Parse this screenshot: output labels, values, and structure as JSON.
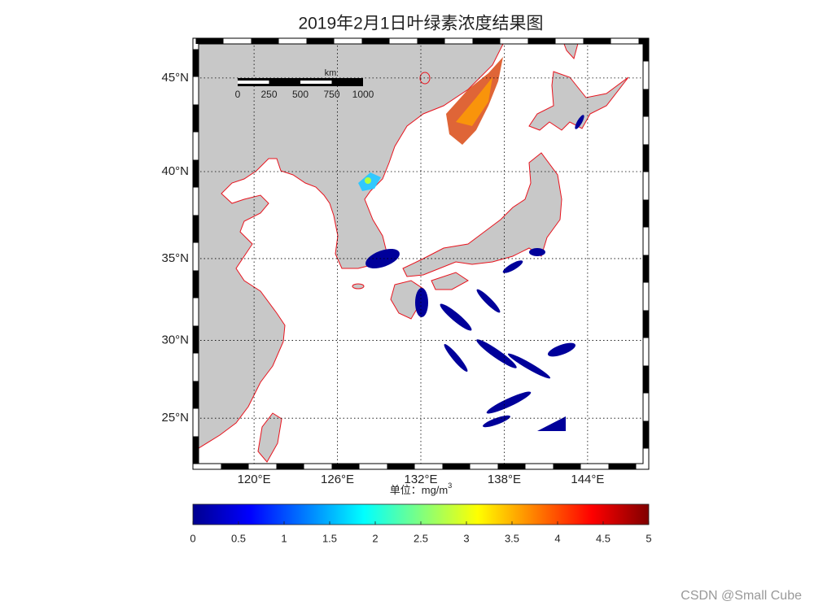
{
  "title": "2019年2月1日叶绿素浓度结果图",
  "map": {
    "lonlim": [
      115.6,
      148.4
    ],
    "latlim": [
      21.6,
      47
    ],
    "lon_ticks": [
      {
        "value": 120,
        "label": "120°E"
      },
      {
        "value": 126,
        "label": "126°E"
      },
      {
        "value": 132,
        "label": "132°E"
      },
      {
        "value": 138,
        "label": "138°E"
      },
      {
        "value": 144,
        "label": "144°E"
      }
    ],
    "lat_ticks": [
      {
        "value": 45,
        "label": "45°N"
      },
      {
        "value": 40,
        "label": "40°N"
      },
      {
        "value": 35,
        "label": "35°N"
      },
      {
        "value": 30,
        "label": "30°N"
      },
      {
        "value": 25,
        "label": "25°N"
      }
    ],
    "scale_bar": {
      "unit": "km",
      "ticks": [
        0,
        250,
        500,
        750,
        1000
      ]
    }
  },
  "colorbar": {
    "unit_label": "单位：mg/m",
    "unit_exponent": "3",
    "lim": [
      0,
      5
    ],
    "ticks": [
      0,
      0.5,
      1,
      1.5,
      2,
      2.5,
      3,
      3.5,
      4,
      4.5,
      5
    ]
  },
  "watermark": "CSDN @Small Cube"
}
